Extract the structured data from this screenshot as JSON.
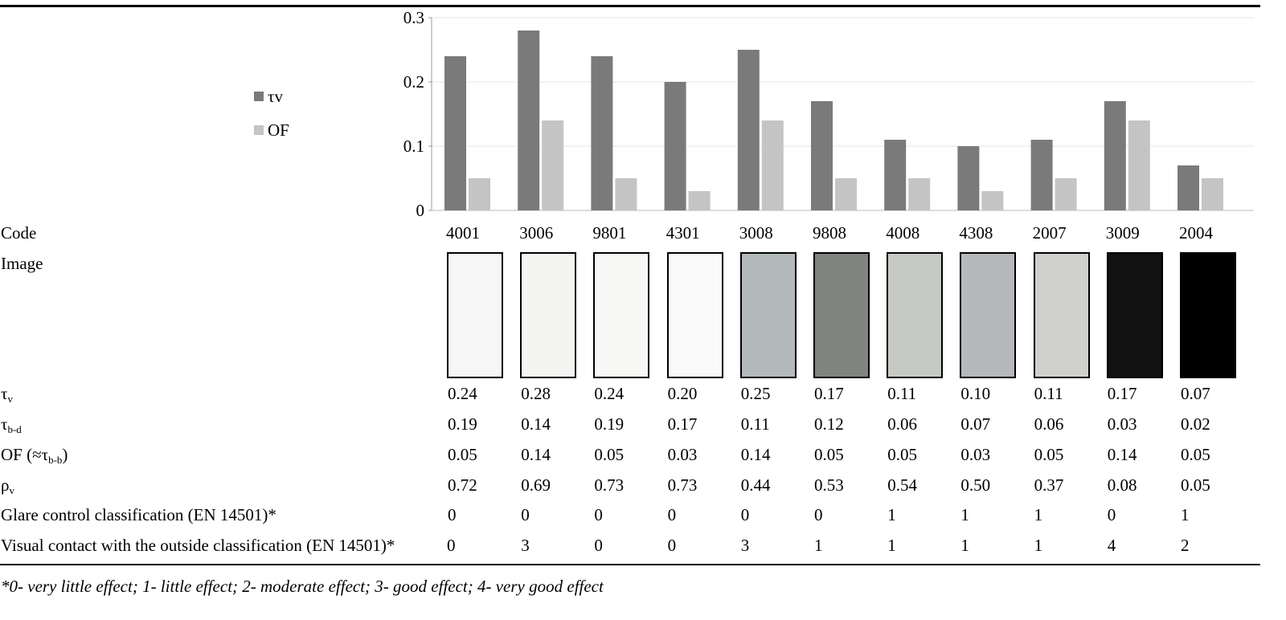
{
  "chart_data": {
    "type": "bar",
    "categories": [
      "4001",
      "3006",
      "9801",
      "4301",
      "3008",
      "9808",
      "4008",
      "4308",
      "2007",
      "3009",
      "2004"
    ],
    "series": [
      {
        "name": "τv",
        "values": [
          0.24,
          0.28,
          0.24,
          0.2,
          0.25,
          0.17,
          0.11,
          0.1,
          0.11,
          0.17,
          0.07
        ],
        "color": "#7a7a7a"
      },
      {
        "name": "OF",
        "values": [
          0.05,
          0.14,
          0.05,
          0.03,
          0.14,
          0.05,
          0.05,
          0.03,
          0.05,
          0.14,
          0.05
        ],
        "color": "#c4c4c4"
      }
    ],
    "ylim": [
      0,
      0.3
    ],
    "yticks": [
      "0",
      "0.1",
      "0.2",
      "0.3"
    ],
    "ytick_values": [
      0,
      0.1,
      0.2,
      0.3
    ],
    "grid": true,
    "legend": "left",
    "title": "",
    "xlabel": "",
    "ylabel": ""
  },
  "table": {
    "code_label": "Code",
    "image_label": "Image",
    "sample_colors": [
      "#f6f6f6",
      "#f4f4f2",
      "#f7f7f6",
      "#fafafa",
      "#b4b9bc",
      "#808380",
      "#c7c9c4",
      "#b5b9bc",
      "#cfd0cb",
      "#111111",
      "#000000"
    ],
    "rows": [
      {
        "label": "τ",
        "sub": "v",
        "values": [
          "0.24",
          "0.28",
          "0.24",
          "0.20",
          "0.25",
          "0.17",
          "0.11",
          "0.10",
          "0.11",
          "0.17",
          "0.07"
        ]
      },
      {
        "label": "τ",
        "sub": "b-d",
        "values": [
          "0.19",
          "0.14",
          "0.19",
          "0.17",
          "0.11",
          "0.12",
          "0.06",
          "0.07",
          "0.06",
          "0.03",
          "0.02"
        ]
      },
      {
        "label": "OF (≈τ",
        "sub": "b-b",
        "suffix": ")",
        "values": [
          "0.05",
          "0.14",
          "0.05",
          "0.03",
          "0.14",
          "0.05",
          "0.05",
          "0.03",
          "0.05",
          "0.14",
          "0.05"
        ]
      },
      {
        "label": "ρ",
        "sub": "v",
        "values": [
          "0.72",
          "0.69",
          "0.73",
          "0.73",
          "0.44",
          "0.53",
          "0.54",
          "0.50",
          "0.37",
          "0.08",
          "0.05"
        ]
      },
      {
        "label": "Glare control classification (EN 14501)*",
        "sub": "",
        "values": [
          "0",
          "0",
          "0",
          "0",
          "0",
          "0",
          "1",
          "1",
          "1",
          "0",
          "1"
        ]
      },
      {
        "label": "Visual contact with the outside classification (EN 14501)*",
        "sub": "",
        "values": [
          "0",
          "3",
          "0",
          "0",
          "3",
          "1",
          "1",
          "1",
          "1",
          "4",
          "2"
        ]
      }
    ],
    "footnote": "*0- very little effect; 1- little effect; 2- moderate effect; 3- good effect; 4- very good effect"
  }
}
